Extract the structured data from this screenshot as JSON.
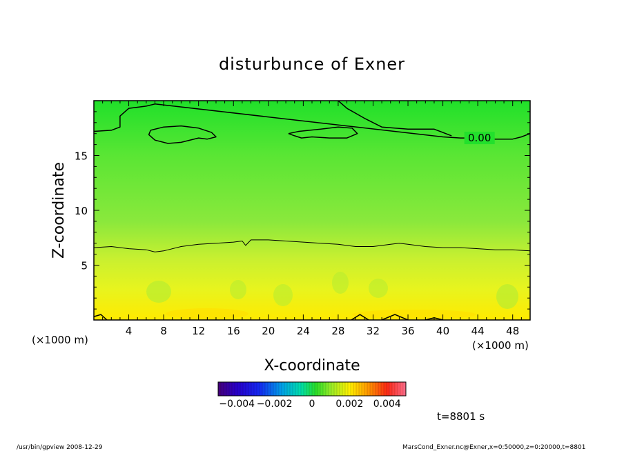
{
  "chart_data": {
    "type": "contour",
    "title": "disturbunce of Exner",
    "xlabel": "X-coordinate",
    "ylabel": "Z-coordinate",
    "x_units": "(×1000 m)",
    "x_units_right": "(×1000 m)",
    "xlim": [
      0,
      50
    ],
    "ylim": [
      0,
      20
    ],
    "x_ticks": [
      "4",
      "8",
      "12",
      "16",
      "20",
      "24",
      "28",
      "32",
      "36",
      "40",
      "44",
      "48"
    ],
    "y_ticks": [
      "5",
      "10",
      "15"
    ],
    "contour_label": "0.00",
    "colorbar": {
      "range": [
        -0.005,
        0.005
      ],
      "tick_labels": [
        "−0.004",
        "−0.002",
        "0",
        "0.002",
        "0.004"
      ]
    },
    "contour_zero_lower": {
      "x": [
        0,
        2,
        4,
        6,
        7,
        8,
        10,
        12,
        14,
        16,
        17,
        17.4,
        18,
        20,
        22,
        24,
        26,
        28,
        30,
        32,
        34,
        35,
        36,
        38,
        40,
        42,
        44,
        46,
        48,
        50
      ],
      "z": [
        6.6,
        6.7,
        6.5,
        6.4,
        6.2,
        6.3,
        6.7,
        6.9,
        7.0,
        7.1,
        7.2,
        6.8,
        7.3,
        7.3,
        7.2,
        7.1,
        7.0,
        6.9,
        6.7,
        6.7,
        6.9,
        7.0,
        6.9,
        6.7,
        6.6,
        6.6,
        6.5,
        6.4,
        6.4,
        6.3
      ]
    },
    "contour_zero_upper": {
      "x": [
        0,
        2,
        3,
        3,
        4,
        6,
        7,
        40,
        42,
        44,
        46,
        48,
        49,
        50
      ],
      "z": [
        17.2,
        17.3,
        17.6,
        18.6,
        19.3,
        19.5,
        19.7,
        16.7,
        16.6,
        16.6,
        16.5,
        16.5,
        16.7,
        17.0
      ]
    },
    "contour_top_right": {
      "x": [
        28,
        29,
        31,
        33,
        36,
        39,
        41
      ],
      "z": [
        20,
        19.3,
        18.4,
        17.6,
        17.4,
        17.4,
        16.8
      ]
    },
    "contour_blob_left": {
      "x": [
        6.5,
        8,
        10,
        12,
        13.5,
        14,
        13,
        12,
        10,
        8.5,
        7,
        6.3,
        6.5
      ],
      "z": [
        17.3,
        17.6,
        17.7,
        17.5,
        17.1,
        16.7,
        16.5,
        16.6,
        16.2,
        16.1,
        16.4,
        16.9,
        17.3
      ]
    },
    "contour_blob_right": {
      "x": [
        22.3,
        23.5,
        26,
        28,
        29.6,
        30.2,
        29,
        27,
        25,
        23.8,
        23,
        22.3
      ],
      "z": [
        17.0,
        17.2,
        17.4,
        17.6,
        17.5,
        17.0,
        16.6,
        16.6,
        16.7,
        16.6,
        16.8,
        17.0
      ]
    },
    "bottom_contours": [
      {
        "x": [
          0,
          0.8,
          1.5
        ],
        "z": [
          0.3,
          0.5,
          0.0
        ]
      },
      {
        "x": [
          29.5,
          30.5,
          31.5
        ],
        "z": [
          0.0,
          0.5,
          0.0
        ]
      },
      {
        "x": [
          33,
          34.5,
          36
        ],
        "z": [
          0.0,
          0.5,
          0.0
        ]
      },
      {
        "x": [
          38,
          39,
          40
        ],
        "z": [
          0.0,
          0.2,
          0.0
        ]
      }
    ],
    "time_label": "t=8801 s",
    "footer_left": "/usr/bin/gpview   2008-12-29",
    "footer_right": "MarsCond_Exner.nc@Exner,x=0:50000,z=0:20000,t=8801"
  }
}
